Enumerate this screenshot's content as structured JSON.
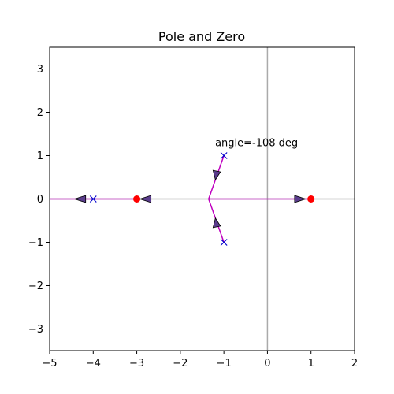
{
  "chart_data": {
    "type": "scatter",
    "title": "Pole and Zero",
    "xlabel": "",
    "ylabel": "",
    "xlim": [
      -5,
      2
    ],
    "ylim": [
      -3.5,
      3.5
    ],
    "grid": false,
    "x_ticks": [
      -5,
      -4,
      -3,
      -2,
      -1,
      0,
      1,
      2
    ],
    "x_tick_labels": [
      "−5",
      "−4",
      "−3",
      "−2",
      "−1",
      "0",
      "1",
      "2"
    ],
    "y_ticks": [
      -3,
      -2,
      -1,
      0,
      1,
      2,
      3
    ],
    "y_tick_labels": [
      "−3",
      "−2",
      "−1",
      "0",
      "1",
      "2",
      "3"
    ],
    "zeros": [
      {
        "x": -3,
        "y": 0
      },
      {
        "x": 1,
        "y": 0
      }
    ],
    "poles": [
      {
        "x": -4,
        "y": 0
      },
      {
        "x": -1,
        "y": 1
      },
      {
        "x": -1,
        "y": -1
      }
    ],
    "locus_branches": [
      [
        [
          -5,
          0
        ],
        [
          -3,
          0
        ]
      ],
      [
        [
          -1.35,
          0
        ],
        [
          1,
          0
        ]
      ],
      [
        [
          -1,
          1
        ],
        [
          -1.35,
          0
        ]
      ],
      [
        [
          -1,
          -1
        ],
        [
          -1.35,
          0
        ]
      ]
    ],
    "direction_arrows": [
      {
        "x": -4.3,
        "y": 0,
        "direction": "left"
      },
      {
        "x": -2.8,
        "y": 0,
        "direction": "left"
      },
      {
        "x": 0.75,
        "y": 0,
        "direction": "right"
      },
      {
        "x": -1.15,
        "y": 0.57,
        "direction": "down"
      },
      {
        "x": -1.15,
        "y": -0.57,
        "direction": "up"
      }
    ],
    "annotation": {
      "text": "angle=-108 deg",
      "x": -1.2,
      "y": 1.2
    },
    "colors": {
      "axis_lines": "#aaaaaa",
      "locus": "#bf00bf",
      "zero_marker": "#ff0000",
      "pole_marker": "#0000cc",
      "arrow_fill": "#5a3c8c"
    }
  }
}
